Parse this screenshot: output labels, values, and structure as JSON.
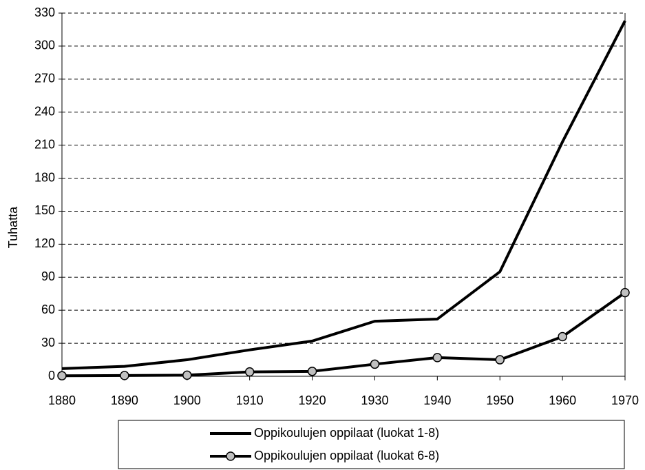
{
  "chart_data": {
    "type": "line",
    "y_label": "Tuhatta",
    "x": [
      1880,
      1890,
      1900,
      1910,
      1920,
      1930,
      1940,
      1950,
      1960,
      1970
    ],
    "series": [
      {
        "name": "Oppikoulujen oppilaat (luokat 1-8)",
        "color": "#000000",
        "marker": null,
        "values": [
          7,
          9,
          15,
          24,
          32,
          50,
          52,
          95,
          213,
          323
        ]
      },
      {
        "name": "Oppikoulujen oppilaat (luokat 6-8)",
        "color": "#000000",
        "marker": "circle",
        "marker_color": "#c0c0c0",
        "values": [
          0.5,
          0.7,
          1,
          4,
          4.5,
          11,
          17,
          15,
          36,
          76
        ]
      }
    ],
    "xlim": [
      1880,
      1970
    ],
    "xticks": [
      1880,
      1890,
      1900,
      1910,
      1920,
      1930,
      1940,
      1950,
      1960,
      1970
    ],
    "ylim": [
      0,
      330
    ],
    "yticks": [
      0,
      30,
      60,
      90,
      120,
      150,
      180,
      210,
      240,
      270,
      300,
      330
    ],
    "grid": true,
    "legend": "bottom"
  }
}
